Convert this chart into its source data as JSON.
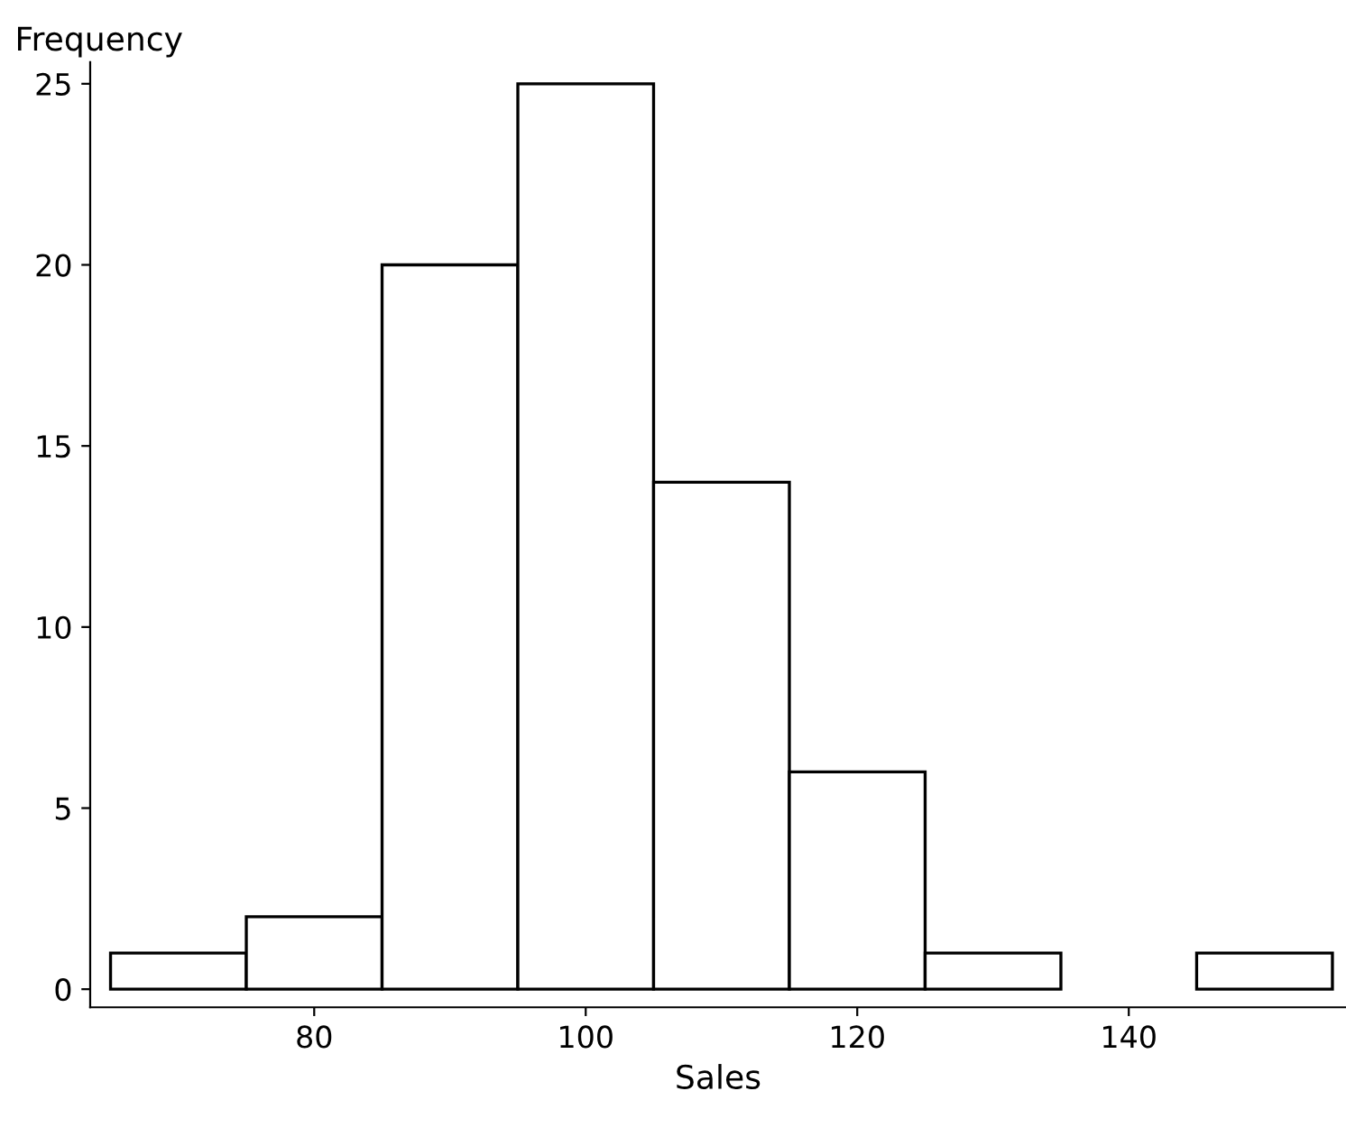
{
  "chart_data": {
    "type": "histogram",
    "xlabel": "Sales",
    "ylabel": "Frequency",
    "bins": [
      65,
      75,
      85,
      95,
      105,
      115,
      125,
      135,
      145,
      155
    ],
    "values": [
      1,
      2,
      20,
      25,
      14,
      6,
      1,
      0,
      1
    ],
    "color": "#ffffff",
    "xlim": [
      63.5,
      156
    ],
    "xticks": [
      80,
      100,
      120,
      140
    ],
    "ylim": [
      -0.5,
      25.6
    ],
    "yticks": [
      0,
      5,
      10,
      15,
      20,
      25
    ],
    "grid": false
  }
}
